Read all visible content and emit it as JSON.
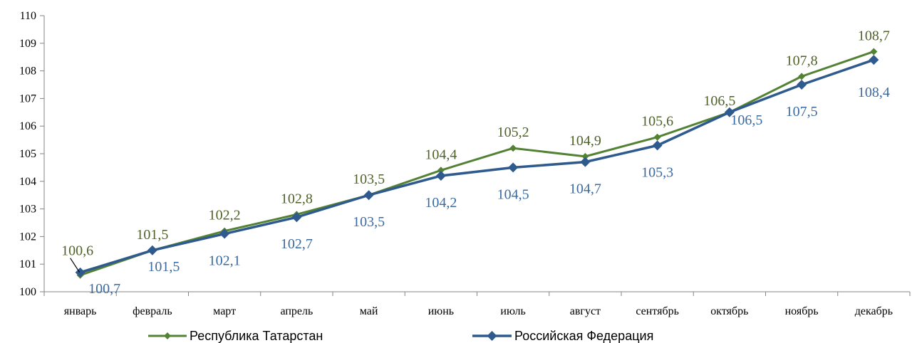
{
  "chart_data": {
    "type": "line",
    "categories": [
      "январь",
      "февраль",
      "март",
      "апрель",
      "май",
      "июнь",
      "июль",
      "август",
      "сентябрь",
      "октябрь",
      "ноябрь",
      "декабрь"
    ],
    "ylim": [
      100,
      110
    ],
    "yticks": [
      "100",
      "101",
      "102",
      "103",
      "104",
      "105",
      "106",
      "107",
      "108",
      "109",
      "110"
    ],
    "grid": false,
    "legend_position": "bottom",
    "series": [
      {
        "name": "Республика Татарстан",
        "color": "#548235",
        "label_color": "#4F6228",
        "marker": "diamond",
        "values": [
          100.6,
          101.5,
          102.2,
          102.8,
          103.5,
          104.4,
          105.2,
          104.9,
          105.6,
          106.5,
          107.8,
          108.7
        ],
        "labels": [
          "100,6",
          "101,5",
          "102,2",
          "102,8",
          "103,5",
          "104,4",
          "105,2",
          "104,9",
          "105,6",
          "106,5",
          "107,8",
          "108,7"
        ]
      },
      {
        "name": "Российская Федерация",
        "color": "#2E5A8E",
        "label_color": "#3A6AA0",
        "marker": "diamond",
        "values": [
          100.7,
          101.5,
          102.1,
          102.7,
          103.5,
          104.2,
          104.5,
          104.7,
          105.3,
          106.5,
          107.5,
          108.4
        ],
        "labels": [
          "100,7",
          "101,5",
          "102,1",
          "102,7",
          "103,5",
          "104,2",
          "104,5",
          "104,7",
          "105,3",
          "106,5",
          "107,5",
          "108,4"
        ]
      }
    ]
  }
}
